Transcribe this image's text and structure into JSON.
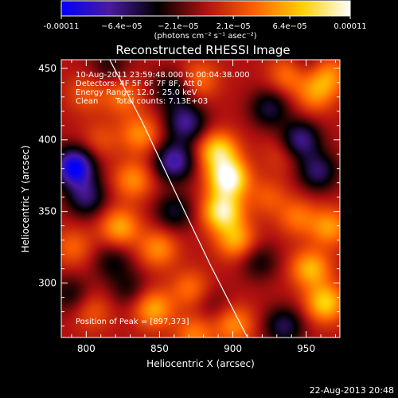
{
  "chart_data": {
    "type": "heatmap",
    "title": "Reconstructed RHESSI Image",
    "xlabel": "Heliocentric X (arcsec)",
    "ylabel": "Heliocentric Y (arcsec)",
    "xlim": [
      783,
      973
    ],
    "ylim": [
      262,
      456
    ],
    "x_ticks": [
      800,
      850,
      900,
      950
    ],
    "y_ticks": [
      300,
      350,
      400,
      450
    ],
    "colorbar": {
      "min": -0.00011,
      "max": 0.00011,
      "tick_values": [
        -0.00011,
        -6.4e-05,
        -2.1e-05,
        2.1e-05,
        6.4e-05,
        0.00011
      ],
      "tick_labels": [
        "-0.00011",
        "−6.4e−05",
        "−2.1e−05",
        "2.1e−05",
        "6.4e−05",
        "0.00011"
      ],
      "unit_label": "(photons cm⁻² s⁻¹ asec⁻²)",
      "colormap": [
        "#0000ff",
        "#4a1aa0",
        "#000000",
        "#b01010",
        "#ff6000",
        "#ffd000",
        "#ffffff"
      ]
    },
    "annotations": [
      "10-Aug-2011 23:59:48.000 to 00:04:38.000",
      "Detectors: 4F 5F 6F 7F 8F, Att 0",
      "Energy Range: 12.0 - 25.0 keV",
      "Clean",
      "Total counts: 7.13E+03",
      "Position of Peak = [897,373]"
    ],
    "peak": {
      "x": 897,
      "y": 373
    },
    "limb_curve": {
      "x": [
        816,
        838,
        861,
        885,
        910
      ],
      "y": [
        456,
        413,
        363,
        312,
        262
      ]
    },
    "sources": [
      {
        "x": 897,
        "y": 373,
        "value": 0.00011
      },
      {
        "x": 893,
        "y": 350,
        "value": 9.5e-05
      },
      {
        "x": 890,
        "y": 392,
        "value": 8e-05
      },
      {
        "x": 902,
        "y": 330,
        "value": 6e-05
      },
      {
        "x": 837,
        "y": 404,
        "value": 5e-05
      },
      {
        "x": 825,
        "y": 430,
        "value": 4e-05
      },
      {
        "x": 832,
        "y": 372,
        "value": 5e-05
      },
      {
        "x": 823,
        "y": 339,
        "value": 6e-05
      },
      {
        "x": 791,
        "y": 325,
        "value": 3.5e-05
      },
      {
        "x": 849,
        "y": 324,
        "value": 5e-05
      },
      {
        "x": 846,
        "y": 282,
        "value": 6e-05
      },
      {
        "x": 871,
        "y": 296,
        "value": 4e-05
      },
      {
        "x": 953,
        "y": 310,
        "value": 6.5e-05
      },
      {
        "x": 963,
        "y": 286,
        "value": 7.5e-05
      },
      {
        "x": 966,
        "y": 339,
        "value": 5.5e-05
      },
      {
        "x": 944,
        "y": 346,
        "value": 4e-05
      },
      {
        "x": 938,
        "y": 446,
        "value": 4.5e-05
      },
      {
        "x": 956,
        "y": 432,
        "value": 4.5e-05
      },
      {
        "x": 965,
        "y": 445,
        "value": 5e-05
      },
      {
        "x": 800,
        "y": 432,
        "value": 3e-05
      },
      {
        "x": 877,
        "y": 442,
        "value": 4e-05
      },
      {
        "x": 924,
        "y": 360,
        "value": 3e-05
      },
      {
        "x": 874,
        "y": 264,
        "value": 4.5e-05
      },
      {
        "x": 901,
        "y": 271,
        "value": 5e-05
      },
      {
        "x": 804,
        "y": 280,
        "value": 3e-05
      },
      {
        "x": 810,
        "y": 400,
        "value": 2.5e-05
      },
      {
        "x": 933,
        "y": 390,
        "value": 2e-05
      },
      {
        "x": 792,
        "y": 381,
        "value": -0.00011
      },
      {
        "x": 800,
        "y": 360,
        "value": -6e-05
      },
      {
        "x": 860,
        "y": 385,
        "value": -8e-05
      },
      {
        "x": 868,
        "y": 412,
        "value": -7e-05
      },
      {
        "x": 859,
        "y": 435,
        "value": -4.5e-05
      },
      {
        "x": 946,
        "y": 400,
        "value": -7e-05
      },
      {
        "x": 958,
        "y": 378,
        "value": -6e-05
      },
      {
        "x": 925,
        "y": 422,
        "value": -5e-05
      },
      {
        "x": 818,
        "y": 315,
        "value": -3.5e-05
      },
      {
        "x": 860,
        "y": 350,
        "value": -4.5e-05
      },
      {
        "x": 918,
        "y": 315,
        "value": -3.5e-05
      },
      {
        "x": 935,
        "y": 270,
        "value": -5.5e-05
      },
      {
        "x": 789,
        "y": 292,
        "value": -3.5e-05
      },
      {
        "x": 829,
        "y": 296,
        "value": -3e-05
      },
      {
        "x": 816,
        "y": 452,
        "value": -3e-05
      },
      {
        "x": 949,
        "y": 453,
        "value": -2.5e-05
      },
      {
        "x": 886,
        "y": 285,
        "value": -2e-05
      }
    ]
  },
  "footer": {
    "timestamp": "22-Aug-2013 20:48"
  }
}
